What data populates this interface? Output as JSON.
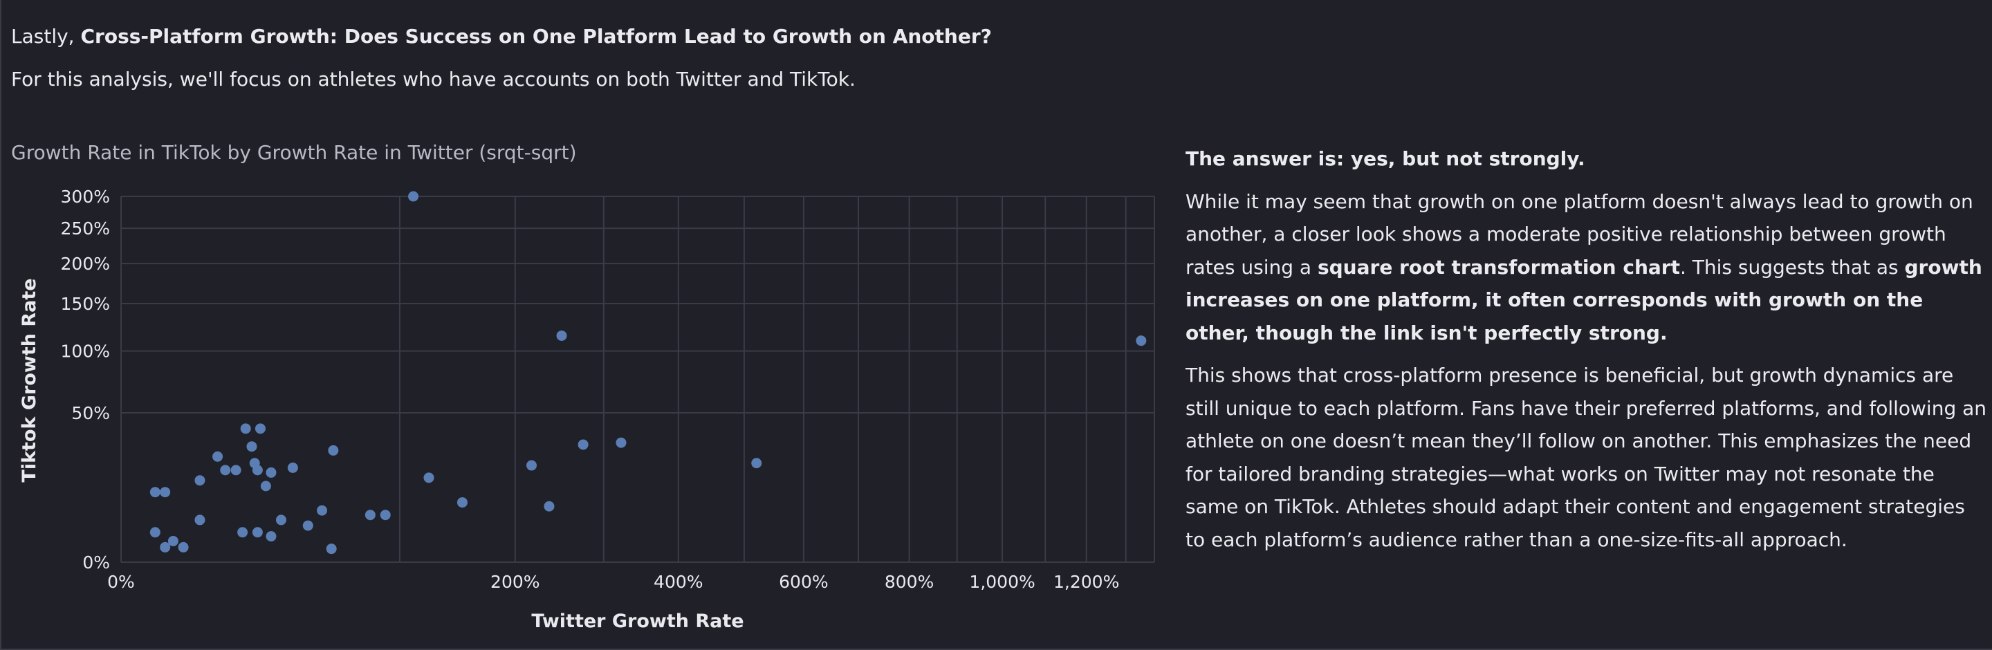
{
  "intro": {
    "lead": "Lastly, ",
    "question": "Cross-Platform Growth: Does Success on One Platform Lead to Growth on Another?",
    "focus": "For this analysis, we'll focus on athletes who have accounts on both Twitter and TikTok."
  },
  "answer": {
    "heading": "The answer is: yes, but not strongly.",
    "p1_a": "While it may seem that growth on one platform doesn't always lead to growth on another, a closer look shows a moderate positive relationship between growth rates using a ",
    "p1_b": "square root transformation chart",
    "p1_c": ". This suggests that as ",
    "p1_d": "growth increases on one platform, it often corresponds with growth on the other, though the link isn't perfectly strong.",
    "p2": "This shows that cross-platform presence is beneficial, but growth dynamics are still unique to each platform. Fans have their preferred platforms, and following an athlete on one doesn’t mean they’ll follow on another. This emphasizes the need for tailored branding strategies—what works on Twitter may not resonate the same on TikTok. Athletes should adapt their content and engagement strategies to each platform’s audience rather than a one-size-fits-all approach."
  },
  "colors": {
    "background": "#202029",
    "point": "#5b7fb4",
    "grid": "#3b3b47"
  },
  "chart_data": {
    "type": "scatter",
    "title": "Growth Rate in TikTok by Growth Rate in Twitter (srqt-sqrt)",
    "xlabel": "Twitter Growth Rate",
    "ylabel": "Tiktok Growth Rate",
    "x_scale": "sqrt",
    "y_scale": "sqrt",
    "xlim": [
      0,
      1375
    ],
    "ylim": [
      0,
      300
    ],
    "grid": true,
    "x_ticks": [
      0,
      200,
      400,
      600,
      800,
      1000,
      1200
    ],
    "x_tick_labels": [
      "0%",
      "200%",
      "400%",
      "600%",
      "800%",
      "1,000%",
      "1,200%"
    ],
    "y_ticks": [
      0,
      50,
      100,
      150,
      200,
      250,
      300
    ],
    "y_tick_labels": [
      "0%",
      "50%",
      "100%",
      "150%",
      "200%",
      "250%",
      "300%"
    ],
    "series": [
      {
        "points": [
          [
            1.5,
            11
          ],
          [
            2.5,
            11
          ],
          [
            1.5,
            2
          ],
          [
            2.5,
            0.5
          ],
          [
            3.5,
            1
          ],
          [
            5,
            0.5
          ],
          [
            8,
            4
          ],
          [
            8,
            15
          ],
          [
            12,
            25
          ],
          [
            14,
            19
          ],
          [
            20,
            40
          ],
          [
            25,
            40
          ],
          [
            22,
            30
          ],
          [
            24,
            19
          ],
          [
            23,
            22
          ],
          [
            17,
            19
          ],
          [
            27,
            13
          ],
          [
            29,
            18
          ],
          [
            38,
            20
          ],
          [
            24,
            2
          ],
          [
            19,
            2
          ],
          [
            29,
            1.5
          ],
          [
            33,
            4
          ],
          [
            45,
            3
          ],
          [
            52,
            6
          ],
          [
            57,
            0.4
          ],
          [
            58,
            28
          ],
          [
            80,
            5
          ],
          [
            90,
            5
          ],
          [
            122,
            16
          ],
          [
            150,
            8
          ],
          [
            217,
            21
          ],
          [
            236,
            7
          ],
          [
            250,
            115
          ],
          [
            275,
            31
          ],
          [
            322,
            32
          ],
          [
            520,
            22
          ],
          [
            1340,
            110
          ],
          [
            110,
            300
          ]
        ]
      }
    ]
  }
}
